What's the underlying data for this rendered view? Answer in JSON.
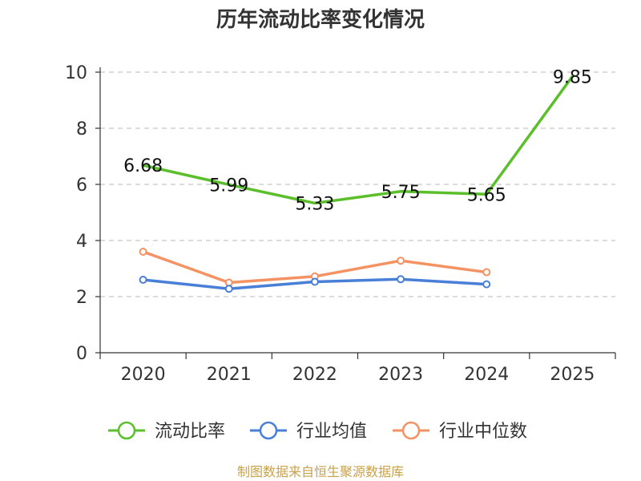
{
  "chart_data": {
    "type": "line",
    "title": "历年流动比率变化情况",
    "categories": [
      "2020",
      "2021",
      "2022",
      "2023",
      "2024",
      "2025"
    ],
    "ylim": [
      0,
      10
    ],
    "yticks": [
      0,
      2,
      4,
      6,
      8,
      10
    ],
    "grid": true,
    "legend_position": "bottom",
    "series": [
      {
        "name": "流动比率",
        "color": "#5bbf2b",
        "values": [
          6.68,
          5.99,
          5.33,
          5.75,
          5.65,
          9.85
        ],
        "labels": [
          "6.68",
          "5.99",
          "5.33",
          "5.75",
          "5.65",
          "9.85"
        ],
        "show_markers": false
      },
      {
        "name": "行业均值",
        "color": "#4a7fd8",
        "values": [
          2.6,
          2.28,
          2.53,
          2.62,
          2.44,
          null
        ],
        "show_markers": true
      },
      {
        "name": "行业中位数",
        "color": "#f59263",
        "values": [
          3.6,
          2.5,
          2.72,
          3.28,
          2.87,
          null
        ],
        "show_markers": true
      }
    ],
    "source": "制图数据来自恒生聚源数据库",
    "source_color": "#c9a14a"
  }
}
